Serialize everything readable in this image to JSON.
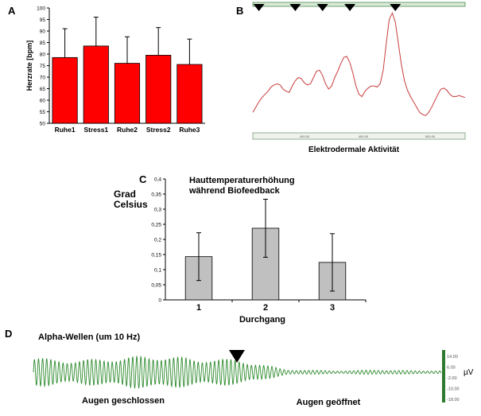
{
  "panels": {
    "a": {
      "letter": "A"
    },
    "b": {
      "letter": "B"
    },
    "c": {
      "letter": "C"
    },
    "d": {
      "letter": "D"
    }
  },
  "chart_data": [
    {
      "id": "A",
      "type": "bar",
      "ylabel": "Herzrate [bpm]",
      "categories": [
        "Ruhe1",
        "Stress1",
        "Ruhe2",
        "Stress2",
        "Ruhe3"
      ],
      "values": [
        78.5,
        83.5,
        76,
        79.5,
        75.5
      ],
      "errors": [
        12.5,
        12.5,
        11.5,
        12,
        11
      ],
      "ylim": [
        50,
        100
      ],
      "yticks": [
        50,
        55,
        60,
        65,
        70,
        75,
        80,
        85,
        90,
        95,
        100
      ],
      "bar_color": "#ff0000"
    },
    {
      "id": "B",
      "type": "line",
      "xlabel": "Elektrodermale Aktivität",
      "scale_labels": [
        "400.00",
        "450.00",
        "500.00"
      ],
      "x": [
        0,
        1,
        2,
        3,
        4,
        5,
        6,
        7,
        8,
        9,
        10,
        11,
        12,
        13,
        14,
        15,
        16,
        17,
        18,
        19,
        20,
        21,
        22,
        23,
        24,
        25,
        26,
        27,
        28,
        29,
        30,
        31,
        32,
        33,
        34,
        35,
        36,
        37,
        38,
        39,
        40,
        41,
        42,
        43,
        44,
        45,
        46,
        47,
        48,
        49,
        50,
        51,
        52,
        53,
        54,
        55,
        56,
        57,
        58,
        59,
        60,
        61,
        62,
        63,
        64,
        65,
        66,
        67,
        68,
        69,
        70
      ],
      "y": [
        0.05,
        0.1,
        0.15,
        0.19,
        0.22,
        0.25,
        0.29,
        0.31,
        0.32,
        0.31,
        0.27,
        0.25,
        0.24,
        0.3,
        0.35,
        0.38,
        0.37,
        0.33,
        0.31,
        0.32,
        0.38,
        0.44,
        0.45,
        0.4,
        0.32,
        0.27,
        0.3,
        0.38,
        0.44,
        0.51,
        0.57,
        0.58,
        0.52,
        0.42,
        0.3,
        0.22,
        0.2,
        0.25,
        0.28,
        0.3,
        0.3,
        0.29,
        0.32,
        0.45,
        0.7,
        0.93,
        0.99,
        0.9,
        0.7,
        0.5,
        0.35,
        0.26,
        0.2,
        0.15,
        0.1,
        0.05,
        0.03,
        0.02,
        0.05,
        0.1,
        0.16,
        0.22,
        0.27,
        0.28,
        0.26,
        0.22,
        0.2,
        0.2,
        0.21,
        0.2,
        0.19
      ],
      "markers": [
        2,
        14,
        23,
        32,
        47
      ],
      "line_color": "#c83c3c"
    },
    {
      "id": "C",
      "type": "bar",
      "title": "Hauttemperaturerhöhung während Biofeedback",
      "ylabel": "Grad Celsius",
      "xlabel": "Durchgang",
      "categories": [
        "1",
        "2",
        "3"
      ],
      "values": [
        0.143,
        0.237,
        0.124
      ],
      "errors": [
        0.079,
        0.096,
        0.095
      ],
      "ylim": [
        0,
        0.4
      ],
      "yticks": [
        "0",
        "0,05",
        "0,1",
        "0,15",
        "0,2",
        "0,25",
        "0,3",
        "0,35",
        "0,4"
      ],
      "bar_color": "#c0c0c0"
    },
    {
      "id": "D",
      "type": "line",
      "title": "Alpha-Wellen (um 10 Hz)",
      "unit": "µV",
      "scale_ticks": [
        "14.00",
        "6.00",
        "-2.00",
        "-10.00",
        "-18.00"
      ],
      "annotations": [
        "Augen geschlossen",
        "Augen geöffnet"
      ],
      "series": [
        {
          "values": [
            {
              "t": 0.0,
              "amp": 0.85
            },
            {
              "t": 0.1,
              "amp": 0.7
            },
            {
              "t": 0.2,
              "amp": 0.85
            },
            {
              "t": 0.3,
              "amp": 1.0
            },
            {
              "t": 0.4,
              "amp": 0.8
            },
            {
              "t": 0.5,
              "amp": 0.75
            },
            {
              "t": 0.62,
              "amp": 0.15
            },
            {
              "t": 0.75,
              "amp": 0.08
            },
            {
              "t": 0.85,
              "amp": 0.14
            },
            {
              "t": 0.95,
              "amp": 0.08
            },
            {
              "t": 1.0,
              "amp": 0.1
            }
          ]
        }
      ],
      "line_color": "#2e8b2e"
    }
  ]
}
